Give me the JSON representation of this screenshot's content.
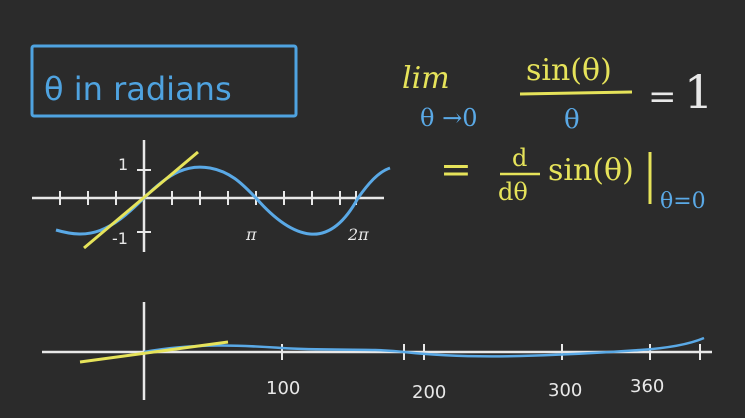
{
  "title": "θ in radians",
  "formula": {
    "lim": "lim",
    "subscript": "θ →0",
    "numerator": "sin(θ)",
    "denominator": "θ",
    "equals_one": "=",
    "one": "1",
    "equals": "=",
    "d_num": "d",
    "d_den": "dθ",
    "sin": "sin(θ)",
    "eval": "θ=0"
  },
  "top_graph": {
    "y_label": "1",
    "y_neg_label": "-1",
    "x_labels": [
      "π",
      "2π"
    ]
  },
  "bottom_graph": {
    "x_labels": [
      "100",
      "200",
      "300",
      "360"
    ]
  },
  "colors": {
    "background": "#2b2b2b",
    "chalk": "#e8e8e8",
    "curve": "#5aa9e6",
    "tangent": "#e6e35a",
    "box": "#4fa3e0"
  }
}
